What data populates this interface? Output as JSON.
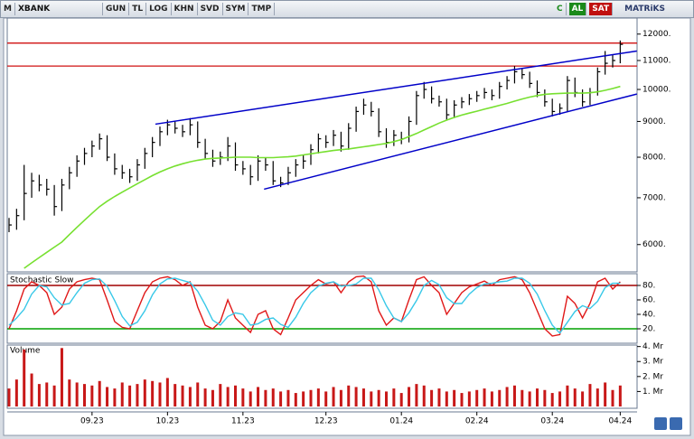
{
  "toolbar": {
    "logo": "M",
    "symbol": "XBANK",
    "buttons": [
      "GUN",
      "TL",
      "LOG",
      "KHN",
      "SVD",
      "SYM",
      "TMP"
    ],
    "c": "C",
    "buy": "AL",
    "sell": "SAT",
    "brand": "MATRiKS"
  },
  "chart_data": [
    {
      "type": "ohlc",
      "log_scale": true,
      "color": "#000000",
      "categories": [
        null,
        null,
        null,
        null,
        null,
        null,
        null,
        null,
        null,
        null,
        null,
        "09.23",
        null,
        null,
        null,
        null,
        null,
        null,
        null,
        null,
        null,
        "10.23",
        null,
        null,
        null,
        null,
        null,
        null,
        null,
        null,
        null,
        "11.23",
        null,
        null,
        null,
        null,
        null,
        null,
        null,
        null,
        null,
        null,
        "12.23",
        null,
        null,
        null,
        null,
        null,
        null,
        null,
        null,
        null,
        "01.24",
        null,
        null,
        null,
        null,
        null,
        null,
        null,
        null,
        null,
        "02.24",
        null,
        null,
        null,
        null,
        null,
        null,
        null,
        null,
        null,
        "03.24",
        null,
        null,
        null,
        null,
        null,
        null,
        null,
        null,
        "04.24"
      ],
      "high": [
        6550,
        6750,
        7800,
        7600,
        7550,
        7450,
        7300,
        7450,
        7750,
        8050,
        8250,
        8450,
        8650,
        8600,
        8100,
        7800,
        7700,
        7950,
        8250,
        8550,
        8850,
        9050,
        9000,
        8900,
        9100,
        9000,
        8500,
        8200,
        8150,
        8550,
        8400,
        7900,
        7800,
        8050,
        8000,
        7900,
        7500,
        7750,
        7950,
        8050,
        8350,
        8650,
        8600,
        8750,
        8700,
        8950,
        9450,
        9700,
        9600,
        9400,
        8800,
        8750,
        8700,
        9150,
        9950,
        10250,
        10100,
        9800,
        9700,
        9650,
        9750,
        9850,
        9950,
        10050,
        10000,
        10250,
        10450,
        10800,
        10700,
        10600,
        10300,
        10000,
        9700,
        9550,
        10450,
        10400,
        10000,
        10050,
        10750,
        11350,
        11200,
        11750
      ],
      "low": [
        6250,
        6300,
        6500,
        7000,
        7150,
        7050,
        6600,
        6700,
        7200,
        7500,
        7800,
        8000,
        8200,
        7900,
        7550,
        7450,
        7350,
        7400,
        7700,
        8000,
        8300,
        8600,
        8650,
        8550,
        8600,
        8250,
        7950,
        7750,
        7800,
        7900,
        7650,
        7550,
        7300,
        7400,
        7650,
        7300,
        7250,
        7300,
        7500,
        7700,
        7800,
        8100,
        8250,
        8300,
        8150,
        8200,
        8700,
        9200,
        9150,
        8550,
        8250,
        8300,
        8350,
        8400,
        8900,
        9700,
        9550,
        9450,
        9050,
        9100,
        9400,
        9500,
        9600,
        9700,
        9650,
        9700,
        10000,
        10200,
        10350,
        10050,
        9750,
        9450,
        9150,
        9200,
        9300,
        9750,
        9450,
        9500,
        9800,
        10500,
        10750,
        10900
      ],
      "close": [
        6400,
        6600,
        7100,
        7400,
        7300,
        7200,
        6800,
        7300,
        7600,
        7900,
        8100,
        8300,
        8500,
        8000,
        7700,
        7600,
        7500,
        7800,
        8100,
        8400,
        8700,
        8900,
        8800,
        8700,
        8900,
        8400,
        8100,
        7900,
        8000,
        8300,
        7800,
        7700,
        7500,
        7900,
        7800,
        7400,
        7350,
        7600,
        7800,
        7900,
        8200,
        8500,
        8400,
        8600,
        8300,
        8800,
        9300,
        9500,
        9300,
        8700,
        8400,
        8600,
        8500,
        9000,
        9800,
        10000,
        9700,
        9600,
        9200,
        9500,
        9600,
        9700,
        9800,
        9900,
        9800,
        10100,
        10300,
        10600,
        10500,
        10200,
        9900,
        9600,
        9300,
        9400,
        10300,
        9900,
        9600,
        9900,
        10600,
        10900,
        11000,
        11600
      ],
      "ma": {
        "color": "#77e030",
        "values": [
          null,
          null,
          5550,
          5650,
          5750,
          5850,
          5950,
          6050,
          6200,
          6350,
          6500,
          6650,
          6800,
          6920,
          7030,
          7130,
          7230,
          7330,
          7430,
          7530,
          7620,
          7700,
          7770,
          7830,
          7880,
          7920,
          7950,
          7970,
          7980,
          7990,
          8000,
          8000,
          8000,
          7990,
          7990,
          7990,
          8000,
          8010,
          8030,
          8060,
          8090,
          8120,
          8150,
          8180,
          8200,
          8220,
          8250,
          8280,
          8310,
          8340,
          8370,
          8420,
          8480,
          8560,
          8650,
          8750,
          8850,
          8950,
          9040,
          9120,
          9190,
          9250,
          9310,
          9370,
          9430,
          9490,
          9550,
          9620,
          9690,
          9750,
          9800,
          9840,
          9860,
          9870,
          9880,
          9880,
          9880,
          9890,
          9920,
          9970,
          10030,
          10100
        ]
      },
      "trend_lines": [
        {
          "color": "#0000c8",
          "x": [
            19.4,
            83.2
          ],
          "y": [
            8920,
            11350
          ]
        },
        {
          "color": "#0000c8",
          "x": [
            33.8,
            83.2
          ],
          "y": [
            7200,
            9850
          ]
        }
      ],
      "levels": [
        11650,
        10800
      ],
      "level_color": "#d01010",
      "ylim": [
        5500,
        12650
      ],
      "yticks": [
        {
          "value": 6000,
          "label": "6000."
        },
        {
          "value": 7000,
          "label": "7000."
        },
        {
          "value": 8000,
          "label": "8000."
        },
        {
          "value": 9000,
          "label": "9000."
        },
        {
          "value": 10000,
          "label": "10000."
        },
        {
          "value": 11000,
          "label": "11000."
        },
        {
          "value": 12000,
          "label": "12000."
        }
      ]
    },
    {
      "type": "line",
      "title": "Stochastic Slow",
      "series": [
        {
          "color": "#e01818",
          "values": [
            20,
            45,
            75,
            85,
            80,
            70,
            40,
            50,
            75,
            85,
            88,
            90,
            88,
            60,
            30,
            22,
            20,
            45,
            70,
            85,
            90,
            92,
            88,
            80,
            85,
            50,
            25,
            20,
            30,
            60,
            35,
            25,
            15,
            40,
            45,
            20,
            12,
            35,
            60,
            70,
            80,
            88,
            82,
            85,
            70,
            85,
            92,
            93,
            85,
            45,
            25,
            35,
            30,
            60,
            88,
            92,
            80,
            70,
            40,
            55,
            70,
            78,
            82,
            86,
            80,
            88,
            90,
            92,
            88,
            70,
            45,
            20,
            10,
            12,
            65,
            55,
            35,
            55,
            85,
            90,
            75,
            85
          ]
        },
        {
          "color": "#38c8e8",
          "values": [
            25,
            35,
            47,
            68,
            80,
            78,
            63,
            53,
            55,
            70,
            83,
            88,
            89,
            79,
            59,
            37,
            24,
            29,
            45,
            67,
            82,
            89,
            90,
            87,
            84,
            72,
            53,
            32,
            25,
            37,
            42,
            40,
            25,
            27,
            33,
            35,
            26,
            22,
            36,
            55,
            70,
            79,
            83,
            85,
            79,
            80,
            82,
            90,
            90,
            74,
            52,
            35,
            30,
            42,
            59,
            80,
            87,
            81,
            63,
            55,
            55,
            68,
            77,
            82,
            83,
            85,
            86,
            90,
            90,
            83,
            68,
            45,
            25,
            14,
            29,
            44,
            52,
            48,
            58,
            77,
            83,
            83
          ]
        }
      ],
      "levels": [
        80,
        20
      ],
      "level_colors": [
        "#a00000",
        "#00a000"
      ],
      "ylim": [
        0,
        95
      ],
      "yticks": [
        {
          "value": 20,
          "label": "20."
        },
        {
          "value": 40,
          "label": "40."
        },
        {
          "value": 60,
          "label": "60."
        },
        {
          "value": 80,
          "label": "80."
        }
      ]
    },
    {
      "type": "bar",
      "title": "Volume",
      "color": "#c81818",
      "values": [
        1.2,
        1.8,
        3.8,
        2.2,
        1.5,
        1.6,
        1.4,
        3.9,
        1.8,
        1.6,
        1.5,
        1.4,
        1.7,
        1.3,
        1.2,
        1.6,
        1.4,
        1.5,
        1.8,
        1.7,
        1.6,
        1.9,
        1.5,
        1.4,
        1.3,
        1.6,
        1.2,
        1.1,
        1.5,
        1.3,
        1.4,
        1.2,
        1.0,
        1.3,
        1.1,
        1.2,
        1.0,
        1.1,
        0.9,
        1.0,
        1.1,
        1.2,
        1.0,
        1.3,
        1.1,
        1.4,
        1.3,
        1.2,
        1.0,
        1.1,
        1.0,
        1.2,
        0.9,
        1.3,
        1.5,
        1.4,
        1.1,
        1.2,
        1.0,
        1.1,
        0.9,
        1.0,
        1.1,
        1.2,
        1.0,
        1.1,
        1.3,
        1.4,
        1.1,
        1.0,
        1.2,
        1.1,
        0.9,
        1.0,
        1.4,
        1.2,
        1.0,
        1.5,
        1.2,
        1.6,
        1.1,
        1.4
      ],
      "ylim": [
        0,
        4.1
      ],
      "yticks": [
        {
          "value": 1,
          "label": "1. Mr"
        },
        {
          "value": 2,
          "label": "2. Mr"
        },
        {
          "value": 3,
          "label": "3. Mr"
        },
        {
          "value": 4,
          "label": "4. Mr"
        }
      ]
    }
  ]
}
